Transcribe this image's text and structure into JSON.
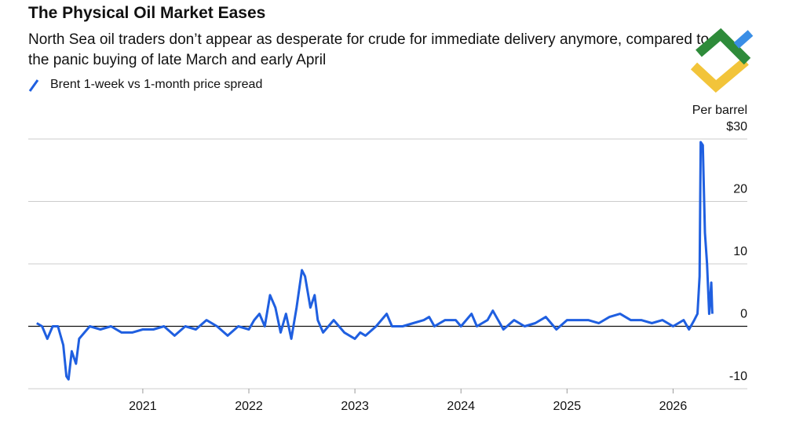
{
  "chart_data": {
    "type": "line",
    "title": "The Physical Oil Market Eases",
    "subtitle": "North Sea oil traders don’t appear as desperate for crude for immediate delivery anymore, compared to the panic buying of late March and early April",
    "y_label": "Per barrel",
    "xlim": [
      2019.92,
      2026.7
    ],
    "xticks": [
      2021,
      2022,
      2023,
      2024,
      2025,
      2026
    ],
    "ylim": [
      -10,
      30
    ],
    "yticks": [
      -10,
      0,
      10,
      20,
      {
        "value": 30,
        "label": "$30"
      }
    ],
    "grid": true,
    "legend": "top-left",
    "series": [
      {
        "name": "Brent 1-week vs 1-month price spread",
        "color": "#1f5fe0",
        "x": [
          2020.0,
          2020.05,
          2020.1,
          2020.15,
          2020.2,
          2020.25,
          2020.28,
          2020.3,
          2020.33,
          2020.37,
          2020.4,
          2020.45,
          2020.5,
          2020.6,
          2020.7,
          2020.8,
          2020.9,
          2021.0,
          2021.1,
          2021.2,
          2021.3,
          2021.4,
          2021.5,
          2021.6,
          2021.7,
          2021.8,
          2021.9,
          2022.0,
          2022.05,
          2022.1,
          2022.15,
          2022.2,
          2022.25,
          2022.3,
          2022.35,
          2022.4,
          2022.45,
          2022.5,
          2022.53,
          2022.58,
          2022.62,
          2022.65,
          2022.7,
          2022.8,
          2022.9,
          2023.0,
          2023.05,
          2023.1,
          2023.2,
          2023.3,
          2023.35,
          2023.45,
          2023.55,
          2023.65,
          2023.7,
          2023.75,
          2023.85,
          2023.95,
          2024.0,
          2024.1,
          2024.15,
          2024.25,
          2024.3,
          2024.4,
          2024.5,
          2024.6,
          2024.7,
          2024.8,
          2024.9,
          2025.0,
          2025.1,
          2025.2,
          2025.3,
          2025.4,
          2025.5,
          2025.6,
          2025.7,
          2025.8,
          2025.9,
          2026.0,
          2026.05,
          2026.1,
          2026.15,
          2026.2,
          2026.23,
          2026.25,
          2026.26,
          2026.28,
          2026.3,
          2026.32,
          2026.34,
          2026.36,
          2026.37
        ],
        "values": [
          0.5,
          0,
          -2,
          0,
          0,
          -3,
          -8,
          -8.5,
          -4,
          -6,
          -2,
          -1,
          0,
          -0.5,
          0,
          -1,
          -1,
          -0.5,
          -0.5,
          0,
          -1.5,
          0,
          -0.5,
          1,
          0,
          -1.5,
          0,
          -0.5,
          1,
          2,
          0,
          5,
          3,
          -1,
          2,
          -2,
          3,
          9,
          8,
          3,
          5,
          1,
          -1,
          1,
          -1,
          -2,
          -1,
          -1.5,
          0,
          2,
          0,
          0,
          0.5,
          1,
          1.5,
          0,
          1,
          1,
          0,
          2,
          0,
          1,
          2.5,
          -0.5,
          1,
          0,
          0.5,
          1.5,
          -0.5,
          1,
          1,
          1,
          0.5,
          1.5,
          2,
          1,
          1,
          0.5,
          1,
          0,
          0.5,
          1,
          -0.5,
          1,
          2,
          8,
          29.5,
          29,
          15,
          10,
          2,
          7,
          2
        ]
      }
    ]
  }
}
